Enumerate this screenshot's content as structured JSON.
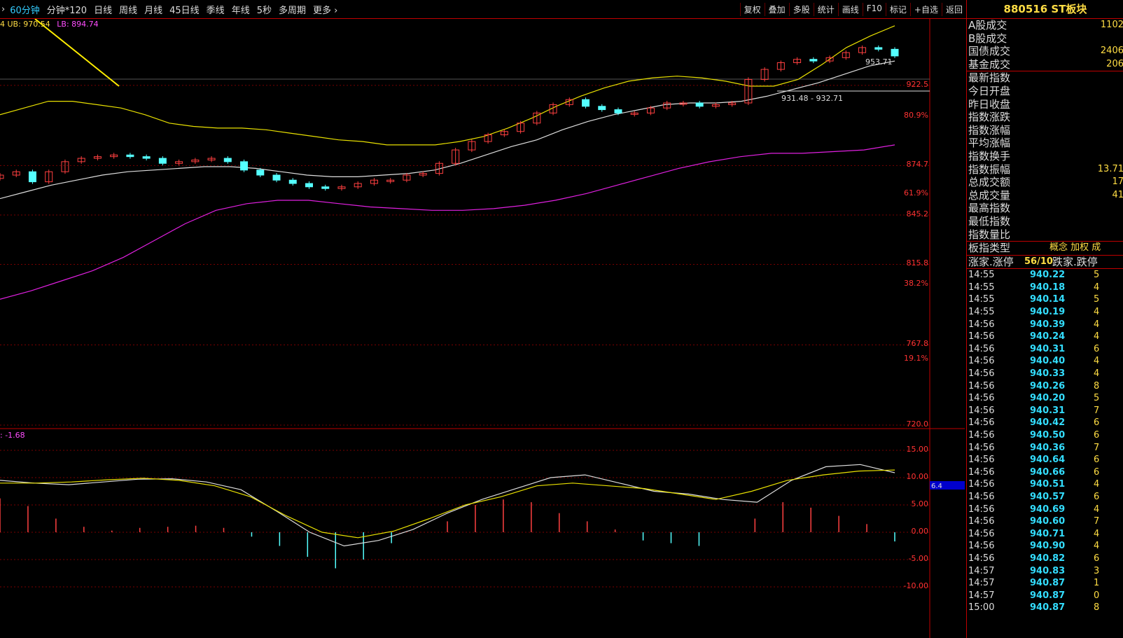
{
  "toolbar": {
    "periods": [
      "60分钟",
      "分钟*120",
      "日线",
      "周线",
      "月线",
      "45日线",
      "季线",
      "年线",
      "5秒",
      "多周期",
      "更多"
    ],
    "active_period": "60分钟",
    "actions": [
      "复权",
      "叠加",
      "多股",
      "统计",
      "画线",
      "F10",
      "标记",
      "+自选",
      "返回"
    ]
  },
  "legend": {
    "ub": "UB: 970.54",
    "lb": "LB: 894.74",
    "macd": ": -1.68"
  },
  "price_axis": {
    "ticks": [
      "922.5",
      "874.7",
      "845.2",
      "815.8",
      "767.8",
      "720.0"
    ],
    "fib_pct": [
      "80.9%",
      "61.9%",
      "38.2%",
      "19.1%"
    ]
  },
  "annotations": {
    "high": "953.71",
    "range": "931.48 - 932.71"
  },
  "macd_axis": {
    "ticks": [
      "15.00",
      "10.00",
      "5.00",
      "0.00",
      "-5.00",
      "-10.00"
    ],
    "current": "6.4"
  },
  "side": {
    "title": "880516 ST板块",
    "info": [
      {
        "label": "A股成交",
        "value": "1102"
      },
      {
        "label": "B股成交",
        "value": ""
      },
      {
        "label": "国债成交",
        "value": "2406"
      },
      {
        "label": "基金成交",
        "value": "206"
      },
      {
        "label": "最新指数",
        "value": ""
      },
      {
        "label": "今日开盘",
        "value": ""
      },
      {
        "label": "昨日收盘",
        "value": ""
      },
      {
        "label": "指数涨跌",
        "value": ""
      },
      {
        "label": "指数涨幅",
        "value": ""
      },
      {
        "label": "平均涨幅",
        "value": ""
      },
      {
        "label": "指数换手",
        "value": ""
      },
      {
        "label": "指数振幅",
        "value": "13.71"
      },
      {
        "label": "总成交额",
        "value": "17"
      },
      {
        "label": "总成交量",
        "value": "41"
      },
      {
        "label": "最高指数",
        "value": ""
      },
      {
        "label": "最低指数",
        "value": ""
      },
      {
        "label": "指数量比",
        "value": ""
      }
    ],
    "board_type_label": "板指类型",
    "board_type_value": "概念 加权 成",
    "rise_label": "涨家.涨停",
    "rise_value": "56/10",
    "fall_label": "跌家.跌停",
    "ticks": [
      {
        "time": "14:55",
        "price": "940.22",
        "vol": "5"
      },
      {
        "time": "14:55",
        "price": "940.18",
        "vol": "4"
      },
      {
        "time": "14:55",
        "price": "940.14",
        "vol": "5"
      },
      {
        "time": "14:55",
        "price": "940.19",
        "vol": "4"
      },
      {
        "time": "14:56",
        "price": "940.39",
        "vol": "4"
      },
      {
        "time": "14:56",
        "price": "940.24",
        "vol": "4"
      },
      {
        "time": "14:56",
        "price": "940.31",
        "vol": "6"
      },
      {
        "time": "14:56",
        "price": "940.40",
        "vol": "4"
      },
      {
        "time": "14:56",
        "price": "940.33",
        "vol": "4"
      },
      {
        "time": "14:56",
        "price": "940.26",
        "vol": "8"
      },
      {
        "time": "14:56",
        "price": "940.20",
        "vol": "5"
      },
      {
        "time": "14:56",
        "price": "940.31",
        "vol": "7"
      },
      {
        "time": "14:56",
        "price": "940.42",
        "vol": "6"
      },
      {
        "time": "14:56",
        "price": "940.50",
        "vol": "6"
      },
      {
        "time": "14:56",
        "price": "940.36",
        "vol": "7"
      },
      {
        "time": "14:56",
        "price": "940.64",
        "vol": "6"
      },
      {
        "time": "14:56",
        "price": "940.66",
        "vol": "6"
      },
      {
        "time": "14:56",
        "price": "940.51",
        "vol": "4"
      },
      {
        "time": "14:56",
        "price": "940.57",
        "vol": "6"
      },
      {
        "time": "14:56",
        "price": "940.69",
        "vol": "4"
      },
      {
        "time": "14:56",
        "price": "940.60",
        "vol": "7"
      },
      {
        "time": "14:56",
        "price": "940.71",
        "vol": "4"
      },
      {
        "time": "14:56",
        "price": "940.90",
        "vol": "4"
      },
      {
        "time": "14:56",
        "price": "940.82",
        "vol": "6"
      },
      {
        "time": "14:57",
        "price": "940.83",
        "vol": "3"
      },
      {
        "time": "14:57",
        "price": "940.87",
        "vol": "1"
      },
      {
        "time": "14:57",
        "price": "940.87",
        "vol": "0"
      },
      {
        "time": "15:00",
        "price": "940.87",
        "vol": "8"
      }
    ]
  },
  "chart_data": {
    "type": "candlestick",
    "period": "60分钟",
    "price_range": [
      720.0,
      960.0
    ],
    "upper_band": [
      905,
      909,
      913,
      913,
      911,
      909,
      905,
      900,
      898,
      897,
      897,
      896,
      894,
      892,
      890,
      889,
      887,
      887,
      887,
      889,
      892,
      897,
      903,
      910,
      916,
      921,
      925,
      927,
      928,
      927,
      925,
      922,
      922,
      926,
      935,
      945,
      952,
      958
    ],
    "middle_band": [
      855,
      859,
      863,
      866,
      869,
      871,
      872,
      873,
      874,
      874,
      873,
      871,
      869,
      868,
      868,
      869,
      870,
      872,
      876,
      881,
      886,
      890,
      896,
      901,
      905,
      908,
      911,
      912,
      912,
      913,
      916,
      920,
      924,
      929,
      934,
      937
    ],
    "lower_band": [
      795,
      800,
      806,
      812,
      820,
      830,
      840,
      848,
      852,
      854,
      854,
      852,
      850,
      849,
      848,
      848,
      849,
      851,
      854,
      858,
      863,
      868,
      873,
      877,
      880,
      882,
      882,
      883,
      884,
      887
    ],
    "closes": [
      869,
      871,
      865,
      871,
      877,
      879,
      880,
      881,
      880,
      879,
      876,
      877,
      878,
      879,
      877,
      872,
      869,
      866,
      864,
      862,
      861,
      862,
      864,
      866,
      866,
      869,
      870,
      876,
      884,
      889,
      893,
      895,
      900,
      906,
      911,
      914,
      910,
      908,
      906,
      906,
      909,
      912,
      912,
      910,
      911,
      912,
      926,
      932,
      936,
      938,
      937,
      939,
      942,
      945,
      944,
      940
    ],
    "macd_dif": [
      9.5,
      9.0,
      8.7,
      9.2,
      9.7,
      9.8,
      9.2,
      7.8,
      4.0,
      0.0,
      -2.5,
      -1.5,
      0.5,
      3.5,
      6.0,
      8.0,
      10.0,
      10.5,
      9.0,
      7.5,
      7.0,
      6.0,
      5.5,
      9.5,
      12.0,
      12.4,
      10.9
    ],
    "macd_dea": [
      9.0,
      9.0,
      9.2,
      9.6,
      9.9,
      9.5,
      8.5,
      6.5,
      3.0,
      0.0,
      -1.0,
      0.2,
      2.5,
      5.0,
      6.5,
      8.5,
      9.0,
      8.5,
      8.0,
      7.0,
      6.0,
      7.5,
      9.5,
      10.5,
      11.2,
      11.4
    ],
    "macd_hist": [
      6.2,
      4.8,
      2.5,
      1.0,
      0.3,
      0.8,
      1.0,
      1.2,
      0.8,
      -0.8,
      -2.5,
      -4.5,
      -6.6,
      -5.0,
      -2.0,
      0.0,
      2.0,
      5.0,
      6.0,
      5.5,
      3.5,
      2.0,
      0.5,
      -1.5,
      -2.0,
      -2.5,
      0.0,
      2.5,
      5.5,
      4.5,
      3.0,
      1.5,
      -1.68
    ]
  }
}
